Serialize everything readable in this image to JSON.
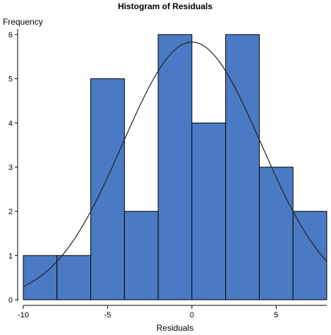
{
  "chart_data": {
    "type": "bar",
    "title": "Histogram of Residuals",
    "xlabel": "Residuals",
    "ylabel": "Frequency",
    "xlim": [
      -10,
      8
    ],
    "ylim": [
      0,
      6
    ],
    "bin_width": 2,
    "bins": [
      {
        "start": -10,
        "end": -8,
        "count": 1
      },
      {
        "start": -8,
        "end": -6,
        "count": 1
      },
      {
        "start": -6,
        "end": -4,
        "count": 5
      },
      {
        "start": -4,
        "end": -2,
        "count": 2
      },
      {
        "start": -2,
        "end": 0,
        "count": 6
      },
      {
        "start": 0,
        "end": 2,
        "count": 4
      },
      {
        "start": 2,
        "end": 4,
        "count": 6
      },
      {
        "start": 4,
        "end": 6,
        "count": 3
      },
      {
        "start": 6,
        "end": 8,
        "count": 2
      }
    ],
    "x_ticks": [
      -10,
      -5,
      0,
      5
    ],
    "y_ticks": [
      0,
      1,
      2,
      3,
      4,
      5,
      6
    ],
    "normal_curve": {
      "mean": 0,
      "sd": 4.1,
      "peak": 5.83
    },
    "bar_color": "#4a7ac4",
    "bar_stroke": "#000000",
    "curve_color": "#222222"
  }
}
